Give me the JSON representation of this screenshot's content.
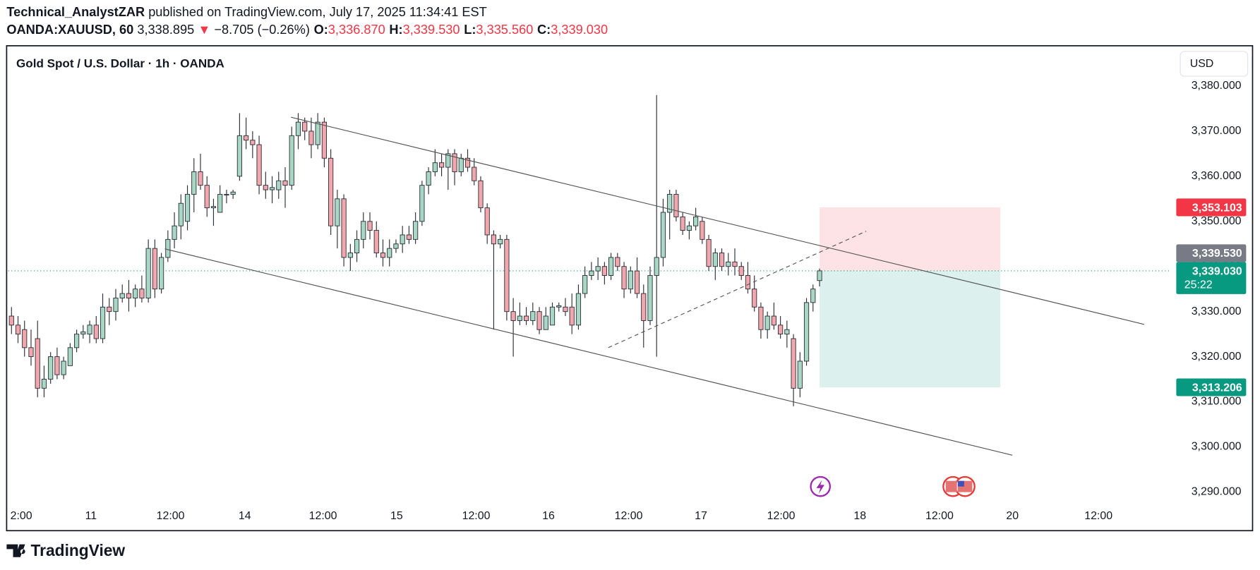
{
  "header": {
    "author": "Technical_AnalystZAR",
    "published": "published on TradingView.com, July 17, 2025 11:34:41 EST",
    "symbol": "OANDA:XAUUSD, 60",
    "last": "3,338.895",
    "arrow": "▼",
    "change": "−8.705 (−0.26%)",
    "ohlc": [
      {
        "key": "O:",
        "value": "3,336.870"
      },
      {
        "key": "H:",
        "value": "3,339.530"
      },
      {
        "key": "L:",
        "value": "3,335.560"
      },
      {
        "key": "C:",
        "value": "3,339.030"
      }
    ]
  },
  "chart_data": {
    "type": "candlestick",
    "title": "Gold Spot / U.S. Dollar · 1h · OANDA",
    "currency": "USD",
    "up_color": "#a8d8c4",
    "down_color": "#f2a7ad",
    "border_color": "#2a2e39",
    "open": [
      3329,
      3327,
      3326,
      3322,
      3324,
      3313,
      3315,
      3320,
      3316,
      3318,
      3322,
      3325,
      3325,
      3327,
      3324,
      3331,
      3330,
      3333,
      3334,
      3333,
      3335,
      3333,
      3344,
      3335,
      3342,
      3346,
      3349,
      3350,
      3356,
      3361,
      3358,
      3353,
      3352,
      3356,
      3356,
      3360,
      3369,
      3368,
      3367,
      3358,
      3357,
      3357,
      3359,
      3358,
      3369,
      3372,
      3370,
      3367,
      3372,
      3364,
      3349,
      3355,
      3342,
      3343,
      3346,
      3350,
      3348,
      3343,
      3342,
      3344,
      3345,
      3347,
      3346,
      3350,
      3358,
      3361,
      3363,
      3362,
      3365,
      3361,
      3364,
      3362,
      3359,
      3353,
      3347,
      3345,
      3346,
      3330,
      3328,
      3329,
      3328,
      3330,
      3326,
      3327,
      3331,
      3331,
      3331,
      3327,
      3334,
      3338,
      3339,
      3340,
      3338,
      3342,
      3340,
      3335,
      3339,
      3334,
      3328,
      3338,
      3342,
      3352,
      3356,
      3351,
      3348,
      3349,
      3350,
      3346,
      3340,
      3343,
      3340,
      3341,
      3340,
      3338,
      3335,
      3331,
      3326,
      3329,
      3327,
      3325,
      3324,
      3313,
      3319,
      3332,
      3336.87
    ],
    "high": [
      3331,
      3329,
      3328,
      3326,
      3328,
      3318,
      3321,
      3322,
      3320,
      3323,
      3326,
      3327,
      3328,
      3329,
      3334,
      3333,
      3335,
      3336,
      3337,
      3336,
      3338,
      3346,
      3346,
      3343,
      3348,
      3352,
      3356,
      3358,
      3364,
      3365,
      3360,
      3355,
      3358,
      3357,
      3357,
      3374,
      3373,
      3370,
      3369,
      3361,
      3360,
      3361,
      3362,
      3371,
      3374,
      3373,
      3373,
      3374,
      3373,
      3366,
      3357,
      3356,
      3345,
      3348,
      3352,
      3352,
      3350,
      3346,
      3346,
      3346,
      3349,
      3349,
      3352,
      3359,
      3362,
      3366,
      3365,
      3366,
      3366,
      3365,
      3366,
      3364,
      3360,
      3354,
      3348,
      3347,
      3347,
      3333,
      3332,
      3331,
      3332,
      3331,
      3331,
      3332,
      3332,
      3333,
      3334,
      3336,
      3340,
      3341,
      3342,
      3341,
      3343,
      3343,
      3341,
      3340,
      3342,
      3336,
      3340,
      3378,
      3355,
      3357,
      3357,
      3352,
      3350,
      3353,
      3351,
      3347,
      3344,
      3344,
      3343,
      3344,
      3341,
      3341,
      3338,
      3332,
      3330,
      3332,
      3329,
      3328,
      3325,
      3321,
      3333,
      3336,
      3339.53
    ],
    "low": [
      3325,
      3323,
      3320,
      3318,
      3311,
      3311,
      3314,
      3315,
      3315,
      3318,
      3321,
      3324,
      3323,
      3323,
      3323,
      3327,
      3328,
      3332,
      3330,
      3331,
      3332,
      3332,
      3333,
      3334,
      3341,
      3344,
      3346,
      3348,
      3352,
      3357,
      3351,
      3349,
      3352,
      3354,
      3355,
      3359,
      3366,
      3364,
      3356,
      3355,
      3354,
      3355,
      3353,
      3357,
      3366,
      3368,
      3364,
      3366,
      3362,
      3347,
      3344,
      3340,
      3339,
      3341,
      3344,
      3346,
      3342,
      3340,
      3340,
      3343,
      3343,
      3345,
      3345,
      3349,
      3356,
      3360,
      3360,
      3357,
      3358,
      3360,
      3361,
      3358,
      3352,
      3345,
      3326,
      3344,
      3328,
      3320,
      3327,
      3327,
      3327,
      3325,
      3326,
      3327,
      3330,
      3329,
      3325,
      3326,
      3333,
      3337,
      3337,
      3336,
      3337,
      3339,
      3333,
      3334,
      3333,
      3322,
      3327,
      3320,
      3340,
      3346,
      3350,
      3347,
      3346,
      3348,
      3345,
      3339,
      3337,
      3339,
      3338,
      3338,
      3337,
      3334,
      3330,
      3324,
      3324,
      3326,
      3324,
      3322,
      3309,
      3311,
      3318,
      3330,
      3335.56
    ],
    "close": [
      3327,
      3325,
      3322,
      3320,
      3313,
      3315,
      3320,
      3316,
      3319,
      3322,
      3325,
      3325.5,
      3327,
      3324,
      3331,
      3330,
      3333,
      3334,
      3333,
      3335,
      3333,
      3344,
      3335,
      3342,
      3346,
      3349,
      3354,
      3356,
      3361,
      3358,
      3353,
      3353.3,
      3356,
      3356,
      3356.5,
      3369,
      3368,
      3367,
      3358,
      3357,
      3357.5,
      3359,
      3358,
      3369,
      3372,
      3370,
      3367,
      3372,
      3364,
      3349,
      3355,
      3342,
      3343,
      3346,
      3350,
      3348,
      3343,
      3342,
      3344,
      3345,
      3347,
      3346,
      3350,
      3358,
      3361,
      3363,
      3362,
      3365,
      3361,
      3364,
      3362,
      3359,
      3353,
      3347,
      3345,
      3346,
      3330,
      3328,
      3329,
      3328,
      3330,
      3326,
      3329,
      3331,
      3331.3,
      3330,
      3327,
      3334,
      3338,
      3339,
      3340,
      3338,
      3342,
      3340,
      3335,
      3339,
      3334,
      3328,
      3338,
      3342,
      3352,
      3356,
      3351,
      3348,
      3349,
      3351,
      3346,
      3340,
      3343,
      3340,
      3341,
      3340,
      3338,
      3335,
      3331,
      3326,
      3329,
      3327,
      3325,
      3326,
      3313,
      3319,
      3332,
      3335,
      3339.03
    ],
    "xlim": [
      -0.5,
      178
    ],
    "xticks": [
      {
        "value": 1.5,
        "label": "2:00"
      },
      {
        "value": 12.2,
        "label": "11"
      },
      {
        "value": 24.4,
        "label": "12:00"
      },
      {
        "value": 35.8,
        "label": "14"
      },
      {
        "value": 47.8,
        "label": "12:00"
      },
      {
        "value": 59.1,
        "label": "15"
      },
      {
        "value": 71.3,
        "label": "12:00"
      },
      {
        "value": 82.4,
        "label": "16"
      },
      {
        "value": 94.7,
        "label": "12:00"
      },
      {
        "value": 105.8,
        "label": "17"
      },
      {
        "value": 118.1,
        "label": "12:00"
      },
      {
        "value": 130.2,
        "label": "18"
      },
      {
        "value": 142.4,
        "label": "12:00"
      },
      {
        "value": 153.6,
        "label": "20"
      },
      {
        "value": 166.8,
        "label": "12:00"
      }
    ],
    "ylim": [
      3281.6,
      3388.4
    ],
    "yticks": [
      {
        "value": 3290,
        "label": "3,290.000"
      },
      {
        "value": 3300,
        "label": "3,300.000"
      },
      {
        "value": 3310,
        "label": "3,310.000"
      },
      {
        "value": 3320,
        "label": "3,320.000"
      },
      {
        "value": 3330,
        "label": "3,330.000"
      },
      {
        "value": 3340,
        "label": "3,340.000"
      },
      {
        "value": 3350,
        "label": "3,350.000"
      },
      {
        "value": 3360,
        "label": "3,360.000"
      },
      {
        "value": 3370,
        "label": "3,370.000"
      },
      {
        "value": 3380,
        "label": "3,380.000"
      }
    ],
    "price_labels": [
      {
        "value": 3353.103,
        "label": "3,353.103",
        "color": "#f23645"
      },
      {
        "value": 3339.53,
        "label": "3,339.530",
        "color": "#787b86"
      },
      {
        "value": 3339.03,
        "label": "3,339.030",
        "color": "#089981",
        "countdown": "25:22"
      },
      {
        "value": 3313.206,
        "label": "3,313.206",
        "color": "#089981"
      }
    ]
  },
  "footer": {
    "brand": "TradingView"
  }
}
